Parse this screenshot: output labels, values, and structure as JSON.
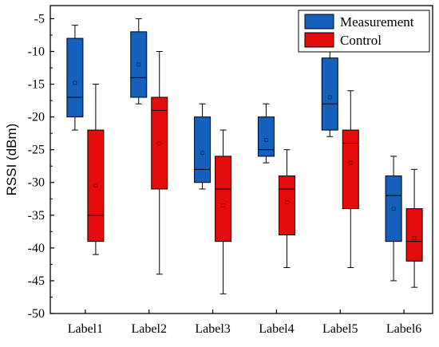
{
  "chart_data": {
    "type": "box",
    "title": "",
    "xlabel": "",
    "ylabel": "RSSI (dBm)",
    "ylim": [
      -50,
      -3
    ],
    "yticks": [
      -5,
      -10,
      -15,
      -20,
      -25,
      -30,
      -35,
      -40,
      -45,
      -50
    ],
    "categories": [
      "Label1",
      "Label2",
      "Label3",
      "Label4",
      "Label5",
      "Label6"
    ],
    "legend_position": "top-right",
    "grid": false,
    "series": [
      {
        "name": "Measurement",
        "color": "#1560bd",
        "boxes": [
          {
            "whisker_low": -22,
            "q1": -20,
            "median": -17,
            "q3": -8,
            "whisker_high": -6,
            "mean": -14.8
          },
          {
            "whisker_low": -18,
            "q1": -17,
            "median": -14,
            "q3": -7,
            "whisker_high": -5,
            "mean": -12
          },
          {
            "whisker_low": -31,
            "q1": -30,
            "median": -28,
            "q3": -20,
            "whisker_high": -18,
            "mean": -25.5
          },
          {
            "whisker_low": -27,
            "q1": -26,
            "median": -25,
            "q3": -20,
            "whisker_high": -18,
            "mean": -23.5
          },
          {
            "whisker_low": -23,
            "q1": -22,
            "median": -18,
            "q3": -11,
            "whisker_high": -10,
            "mean": -17
          },
          {
            "whisker_low": -45,
            "q1": -39,
            "median": -32,
            "q3": -29,
            "whisker_high": -26,
            "mean": -34
          }
        ]
      },
      {
        "name": "Control",
        "color": "#e30b0b",
        "boxes": [
          {
            "whisker_low": -41,
            "q1": -39,
            "median": -35,
            "q3": -22,
            "whisker_high": -15,
            "mean": -30.5
          },
          {
            "whisker_low": -44,
            "q1": -31,
            "median": -19,
            "q3": -17,
            "whisker_high": -10,
            "mean": -24
          },
          {
            "whisker_low": -47,
            "q1": -39,
            "median": -31,
            "q3": -26,
            "whisker_high": -22,
            "mean": -33.5
          },
          {
            "whisker_low": -43,
            "q1": -38,
            "median": -31,
            "q3": -29,
            "whisker_high": -25,
            "mean": -33
          },
          {
            "whisker_low": -43,
            "q1": -34,
            "median": -24,
            "q3": -22,
            "whisker_high": -16,
            "mean": -27
          },
          {
            "whisker_low": -46,
            "q1": -42,
            "median": -39,
            "q3": -34,
            "whisker_high": -28,
            "mean": -38.5
          }
        ]
      }
    ]
  }
}
